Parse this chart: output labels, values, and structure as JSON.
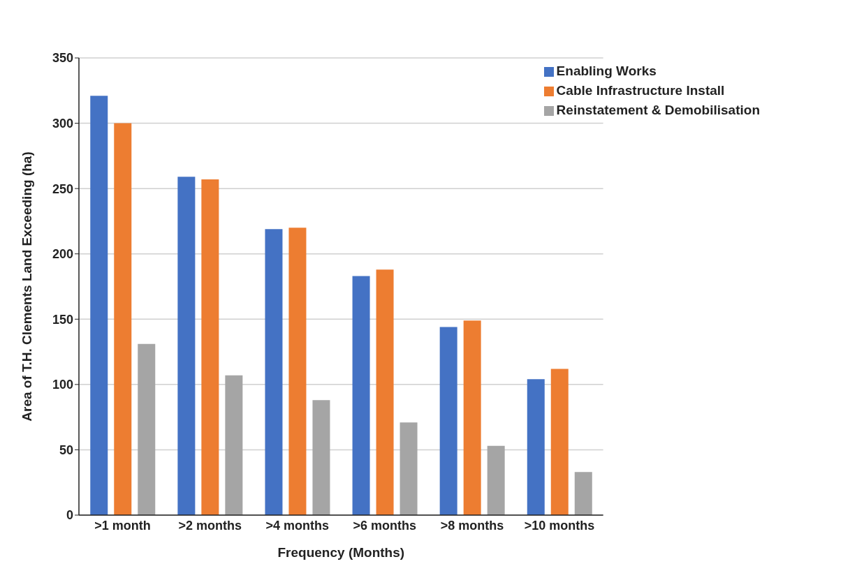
{
  "chart_data": {
    "type": "bar",
    "xlabel": "Frequency (Months)",
    "ylabel": "Area of T.H. Clements Land Exceeding (ha)",
    "categories": [
      ">1 month",
      ">2 months",
      ">4 months",
      ">6 months",
      ">8 months",
      ">10 months"
    ],
    "series": [
      {
        "name": "Enabling Works",
        "color": "#4472c4",
        "values": [
          321,
          259,
          219,
          183,
          144,
          104
        ]
      },
      {
        "name": "Cable Infrastructure Install",
        "color": "#ed7d31",
        "values": [
          300,
          257,
          220,
          188,
          149,
          112
        ]
      },
      {
        "name": "Reinstatement & Demobilisation",
        "color": "#a5a5a5",
        "values": [
          131,
          107,
          88,
          71,
          53,
          33
        ]
      }
    ],
    "ylim": [
      0,
      350
    ],
    "yticks": [
      0,
      50,
      100,
      150,
      200,
      250,
      300,
      350
    ],
    "grid": "y",
    "legend": "top right"
  }
}
